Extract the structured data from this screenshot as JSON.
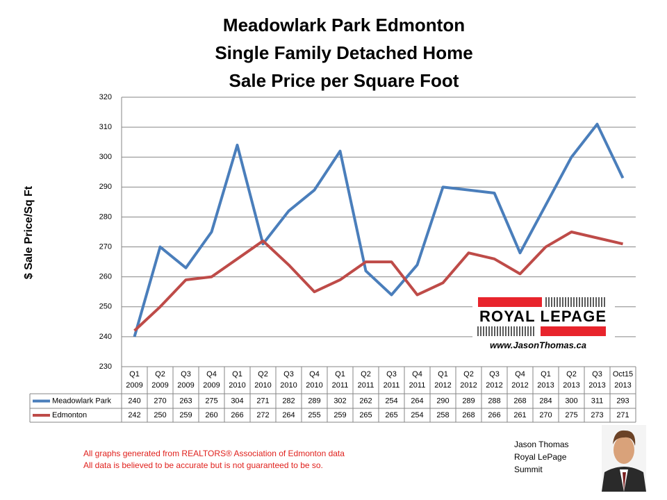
{
  "chart_data": {
    "type": "line",
    "title": [
      "Meadowlark Park Edmonton",
      "Single Family Detached Home",
      "Sale Price per Square Foot"
    ],
    "y_label": "$ Sale Price/Sq Ft",
    "categories": [
      [
        "Q1",
        "2009"
      ],
      [
        "Q2",
        "2009"
      ],
      [
        "Q3",
        "2009"
      ],
      [
        "Q4",
        "2009"
      ],
      [
        "Q1",
        "2010"
      ],
      [
        "Q2",
        "2010"
      ],
      [
        "Q3",
        "2010"
      ],
      [
        "Q4",
        "2010"
      ],
      [
        "Q1",
        "2011"
      ],
      [
        "Q2",
        "2011"
      ],
      [
        "Q3",
        "2011"
      ],
      [
        "Q4",
        "2011"
      ],
      [
        "Q1",
        "2012"
      ],
      [
        "Q2",
        "2012"
      ],
      [
        "Q3",
        "2012"
      ],
      [
        "Q4",
        "2012"
      ],
      [
        "Q1",
        "2013"
      ],
      [
        "Q2",
        "2013"
      ],
      [
        "Q3",
        "2013"
      ],
      [
        "Oct15",
        "2013"
      ]
    ],
    "series": [
      {
        "name": "Meadowlark Park",
        "color": "#4a7ebb",
        "values": [
          240,
          270,
          263,
          275,
          304,
          271,
          282,
          289,
          302,
          262,
          254,
          264,
          290,
          289,
          288,
          268,
          284,
          300,
          311,
          293
        ]
      },
      {
        "name": "Edmonton",
        "color": "#be4b48",
        "values": [
          242,
          250,
          259,
          260,
          266,
          272,
          264,
          255,
          259,
          265,
          265,
          254,
          258,
          268,
          266,
          261,
          270,
          275,
          273,
          271
        ]
      }
    ],
    "ylim": [
      230,
      320
    ],
    "yticks": [
      230,
      240,
      250,
      260,
      270,
      280,
      290,
      300,
      310,
      320
    ],
    "grid": true
  },
  "logo": {
    "brand": "ROYAL LEPAGE",
    "url": "www.JasonThomas.ca"
  },
  "notes": [
    "All graphs generated from REALTORS® Association of Edmonton data",
    "All data is believed to be accurate but is not guaranteed to be so."
  ],
  "author": [
    "Jason Thomas",
    "Royal LePage",
    "Summit"
  ]
}
